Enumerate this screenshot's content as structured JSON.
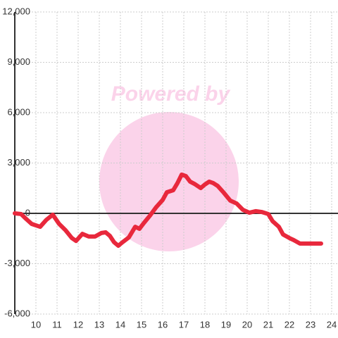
{
  "chart_data": {
    "type": "line",
    "watermark": "Powered by",
    "x": [
      9,
      9.3,
      9.5,
      9.8,
      10.2,
      10.5,
      10.8,
      11.1,
      11.4,
      11.7,
      11.9,
      12.2,
      12.5,
      12.8,
      13.1,
      13.3,
      13.5,
      13.7,
      13.9,
      14.1,
      14.4,
      14.7,
      14.9,
      15.1,
      15.4,
      15.7,
      16.0,
      16.2,
      16.5,
      16.7,
      16.9,
      17.1,
      17.3,
      17.5,
      17.8,
      18.0,
      18.2,
      18.4,
      18.6,
      18.9,
      19.2,
      19.5,
      19.8,
      20.1,
      20.4,
      20.7,
      21.0,
      21.2,
      21.5,
      21.7,
      22.0,
      22.2,
      22.5,
      22.8,
      23.1,
      23.5
    ],
    "series": [
      {
        "color": "#e8283c",
        "values": [
          0,
          -40,
          -290,
          -630,
          -800,
          -380,
          -80,
          -630,
          -1000,
          -1470,
          -1640,
          -1220,
          -1380,
          -1380,
          -1170,
          -1130,
          -1340,
          -1720,
          -1930,
          -1720,
          -1430,
          -800,
          -920,
          -590,
          -130,
          380,
          800,
          1260,
          1380,
          1800,
          2310,
          2220,
          1890,
          1760,
          1510,
          1720,
          1890,
          1800,
          1640,
          1220,
          760,
          590,
          210,
          40,
          130,
          80,
          -40,
          -460,
          -800,
          -1260,
          -1470,
          -1590,
          -1800,
          -1800,
          -1800,
          -1800
        ]
      }
    ],
    "xlim": [
      9,
      24.3
    ],
    "xticks": [
      10,
      11,
      12,
      13,
      14,
      15,
      16,
      17,
      18,
      19,
      20,
      21,
      22,
      23,
      24
    ],
    "ylim": [
      -6000,
      12000
    ],
    "yticks": [
      {
        "value": -6000,
        "label": "-6,000"
      },
      {
        "value": -3000,
        "label": "-3,000"
      },
      0,
      {
        "value": 3000,
        "label": "3,000"
      },
      {
        "value": 6000,
        "label": "6,000"
      },
      {
        "value": 9000,
        "label": "9,000"
      },
      {
        "value": 12000,
        "label": "12,000"
      }
    ],
    "grid": true
  }
}
